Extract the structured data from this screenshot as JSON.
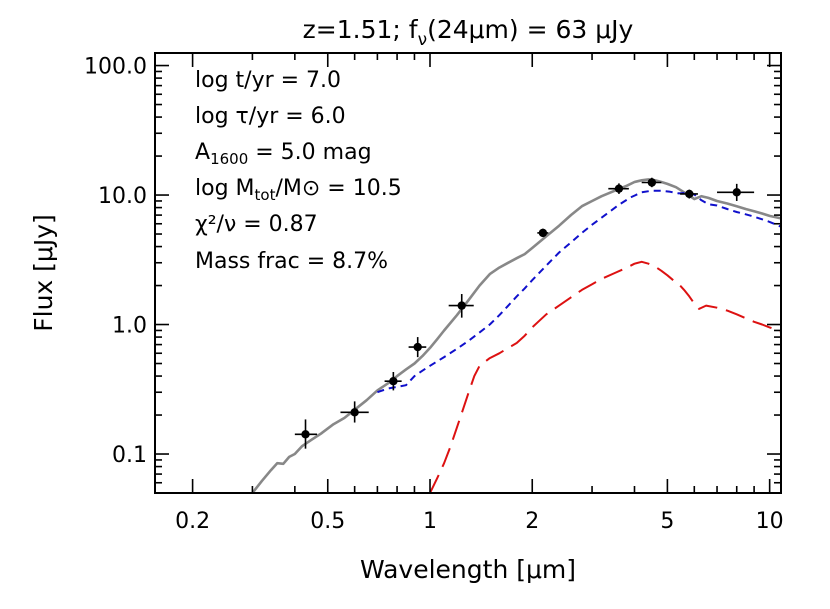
{
  "chart_data": {
    "type": "scatter",
    "title": "z=1.51; f_ν(24μm) =   63 μJy",
    "title_parts": {
      "pre": "z=1.51; f",
      "sub": "ν",
      "post": "(24μm) =   63 μJy"
    },
    "xlabel": "Wavelength [μm]",
    "ylabel": "Flux [μJy]",
    "xscale": "log",
    "yscale": "log",
    "xlim": [
      0.155,
      10.8
    ],
    "ylim": [
      0.05,
      125
    ],
    "xticks": [
      0.2,
      0.5,
      1,
      2,
      5,
      10
    ],
    "xtick_labels": [
      "0.2",
      "0.5",
      "1",
      "2",
      "5",
      "10"
    ],
    "yticks": [
      0.1,
      1.0,
      10.0,
      100.0
    ],
    "ytick_labels": [
      "0.1",
      "1.0",
      "10.0",
      "100.0"
    ],
    "annotations": {
      "log_t": "log t/yr =  7.0",
      "log_tau": "log τ/yr =  6.0",
      "a1600_pre": "A",
      "a1600_sub": "1600",
      "a1600_post": " = 5.0 mag",
      "mtot_pre": "log M",
      "mtot_sub": "tot",
      "mtot_post": "/M⊙ = 10.5",
      "chi2": "χ²/ν = 0.87",
      "mass_frac": "Mass frac =  8.7%"
    },
    "points": [
      {
        "x": 0.43,
        "y": 0.142,
        "xlo": 0.4,
        "xhi": 0.465,
        "ylo": 0.11,
        "yhi": 0.185
      },
      {
        "x": 0.6,
        "y": 0.21,
        "xlo": 0.545,
        "xhi": 0.66,
        "ylo": 0.175,
        "yhi": 0.255
      },
      {
        "x": 0.78,
        "y": 0.365,
        "xlo": 0.735,
        "xhi": 0.825,
        "ylo": 0.31,
        "yhi": 0.43
      },
      {
        "x": 0.92,
        "y": 0.67,
        "xlo": 0.865,
        "xhi": 0.975,
        "ylo": 0.56,
        "yhi": 0.8
      },
      {
        "x": 1.24,
        "y": 1.4,
        "xlo": 1.135,
        "xhi": 1.345,
        "ylo": 1.13,
        "yhi": 1.72
      },
      {
        "x": 2.15,
        "y": 5.1,
        "xlo": 2.07,
        "xhi": 2.23,
        "ylo": 4.75,
        "yhi": 5.5
      },
      {
        "x": 3.6,
        "y": 11.2,
        "xlo": 3.35,
        "xhi": 3.85,
        "ylo": 10.2,
        "yhi": 12.3
      },
      {
        "x": 4.5,
        "y": 12.5,
        "xlo": 4.2,
        "xhi": 4.8,
        "ylo": 11.5,
        "yhi": 13.6
      },
      {
        "x": 5.8,
        "y": 10.2,
        "xlo": 5.45,
        "xhi": 6.15,
        "ylo": 9.4,
        "yhi": 11.0
      },
      {
        "x": 8.0,
        "y": 10.5,
        "xlo": 7.0,
        "xhi": 9.0,
        "ylo": 9.0,
        "yhi": 12.2
      }
    ],
    "series": [
      {
        "style": "solid",
        "color": "#888888",
        "x": [
          0.3,
          0.32,
          0.34,
          0.355,
          0.37,
          0.385,
          0.4,
          0.42,
          0.45,
          0.48,
          0.52,
          0.56,
          0.6,
          0.65,
          0.7,
          0.75,
          0.8,
          0.85,
          0.9,
          0.95,
          1.0,
          1.05,
          1.1,
          1.2,
          1.3,
          1.4,
          1.5,
          1.6,
          1.7,
          1.8,
          1.9,
          2.0,
          2.2,
          2.4,
          2.6,
          2.8,
          3.0,
          3.2,
          3.5,
          3.8,
          4.0,
          4.2,
          4.4,
          4.6,
          4.8,
          5.0,
          5.3,
          5.6,
          5.8,
          6.0,
          6.3,
          6.6,
          7.0,
          7.5,
          8.0,
          8.5,
          9.0,
          9.5,
          10.0,
          10.8
        ],
        "y": [
          0.05,
          0.062,
          0.075,
          0.085,
          0.084,
          0.095,
          0.1,
          0.115,
          0.13,
          0.145,
          0.17,
          0.19,
          0.22,
          0.26,
          0.31,
          0.35,
          0.4,
          0.45,
          0.5,
          0.57,
          0.66,
          0.77,
          0.9,
          1.18,
          1.55,
          2.0,
          2.45,
          2.75,
          3.0,
          3.25,
          3.5,
          3.9,
          4.8,
          5.8,
          7.0,
          8.2,
          9.0,
          9.8,
          10.8,
          11.8,
          12.6,
          13.0,
          13.2,
          13.0,
          12.6,
          12.2,
          11.5,
          10.5,
          9.9,
          9.3,
          9.8,
          9.5,
          9.0,
          8.6,
          8.2,
          7.8,
          7.5,
          7.2,
          6.9,
          6.6
        ]
      },
      {
        "style": "dashed",
        "color": "#1010cc",
        "x": [
          0.7,
          0.75,
          0.8,
          0.85,
          0.9,
          0.95,
          1.0,
          1.1,
          1.2,
          1.3,
          1.4,
          1.5,
          1.6,
          1.7,
          1.8,
          1.9,
          2.0,
          2.2,
          2.4,
          2.6,
          2.8,
          3.0,
          3.3,
          3.6,
          3.9,
          4.2,
          4.5,
          4.8,
          5.1,
          5.4,
          5.7,
          6.0,
          6.3,
          6.6,
          7.0,
          7.5,
          8.0,
          8.5,
          9.0,
          9.5,
          10.0,
          10.8
        ],
        "y": [
          0.3,
          0.32,
          0.33,
          0.34,
          0.4,
          0.44,
          0.48,
          0.56,
          0.65,
          0.75,
          0.87,
          1.0,
          1.18,
          1.4,
          1.65,
          1.9,
          2.2,
          2.85,
          3.6,
          4.3,
          5.1,
          5.9,
          7.1,
          8.4,
          9.6,
          10.5,
          10.8,
          10.8,
          10.6,
          10.3,
          10.4,
          10.1,
          9.1,
          8.5,
          8.3,
          7.8,
          7.4,
          7.1,
          6.8,
          6.5,
          6.2,
          5.7
        ]
      },
      {
        "style": "longdash",
        "color": "#dd1111",
        "x": [
          1.0,
          1.05,
          1.1,
          1.15,
          1.2,
          1.25,
          1.3,
          1.35,
          1.4,
          1.5,
          1.6,
          1.7,
          1.8,
          1.9,
          2.0,
          2.1,
          2.2,
          2.4,
          2.6,
          2.8,
          3.0,
          3.2,
          3.5,
          3.8,
          4.0,
          4.2,
          4.4,
          4.6,
          4.8,
          5.0,
          5.2,
          5.4,
          5.6,
          5.8,
          6.0,
          6.2,
          6.5,
          7.0,
          7.5,
          8.0,
          8.5,
          9.0,
          9.5,
          10.0,
          10.8
        ],
        "y": [
          0.05,
          0.065,
          0.085,
          0.115,
          0.16,
          0.22,
          0.3,
          0.4,
          0.48,
          0.55,
          0.6,
          0.66,
          0.72,
          0.82,
          0.95,
          1.07,
          1.2,
          1.4,
          1.62,
          1.85,
          2.05,
          2.25,
          2.5,
          2.75,
          2.95,
          3.05,
          2.95,
          2.8,
          2.6,
          2.4,
          2.2,
          2.05,
          1.85,
          1.65,
          1.45,
          1.32,
          1.4,
          1.35,
          1.28,
          1.2,
          1.12,
          1.05,
          1.0,
          0.95,
          0.88
        ]
      }
    ]
  }
}
